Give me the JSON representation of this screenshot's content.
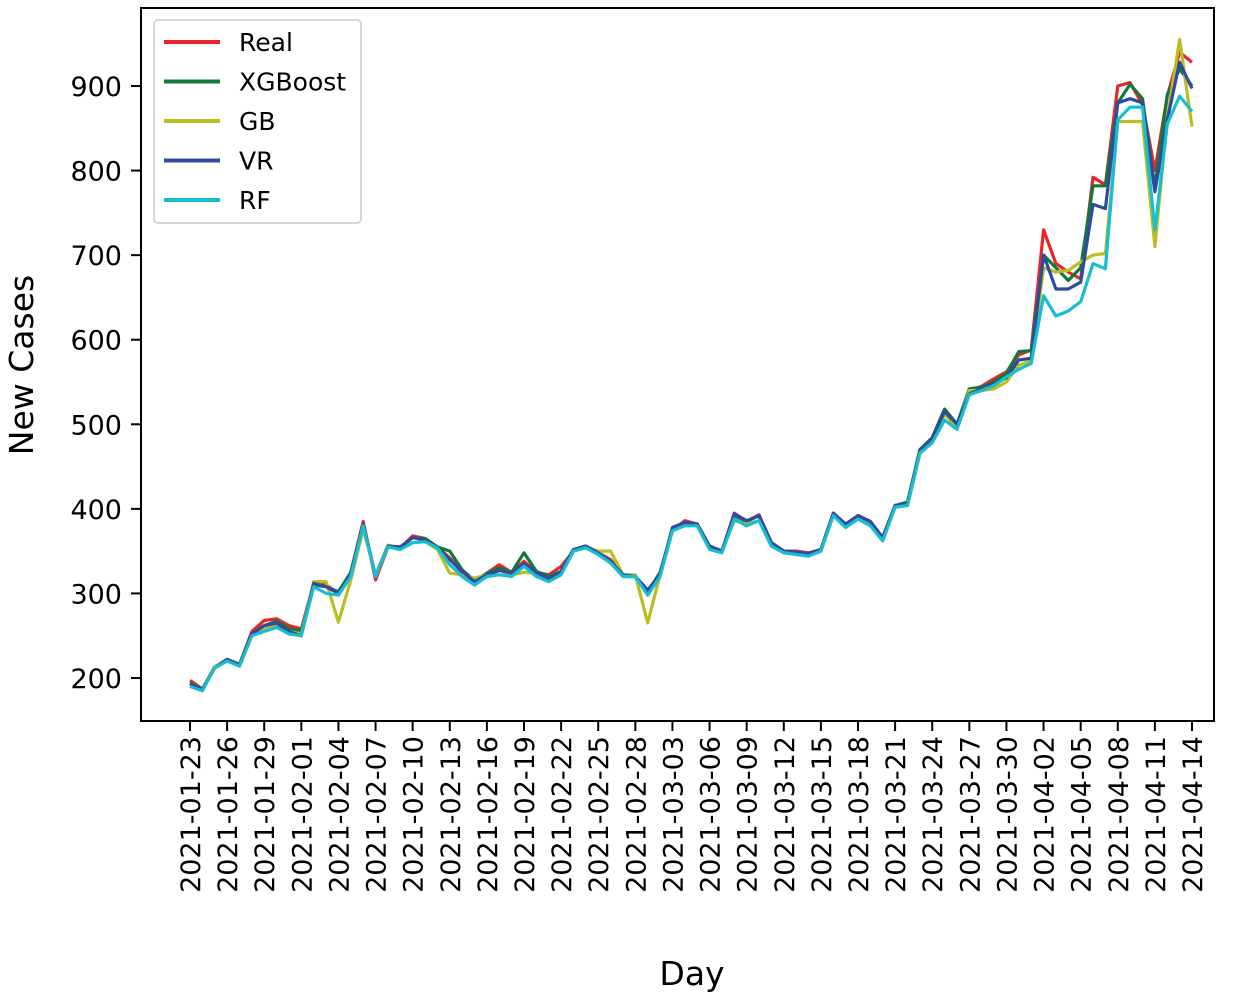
{
  "chart_data": {
    "type": "line",
    "title": "",
    "xlabel": "Day",
    "ylabel": "New Cases",
    "ylim": [
      170,
      960
    ],
    "yticks": [
      200,
      300,
      400,
      500,
      600,
      700,
      800,
      900
    ],
    "grid": false,
    "legend_position": "top-left",
    "x": [
      "2021-01-23",
      "2021-01-24",
      "2021-01-25",
      "2021-01-26",
      "2021-01-27",
      "2021-01-28",
      "2021-01-29",
      "2021-01-30",
      "2021-01-31",
      "2021-02-01",
      "2021-02-02",
      "2021-02-03",
      "2021-02-04",
      "2021-02-05",
      "2021-02-06",
      "2021-02-07",
      "2021-02-08",
      "2021-02-09",
      "2021-02-10",
      "2021-02-11",
      "2021-02-12",
      "2021-02-13",
      "2021-02-14",
      "2021-02-15",
      "2021-02-16",
      "2021-02-17",
      "2021-02-18",
      "2021-02-19",
      "2021-02-20",
      "2021-02-21",
      "2021-02-22",
      "2021-02-23",
      "2021-02-24",
      "2021-02-25",
      "2021-02-26",
      "2021-02-27",
      "2021-02-28",
      "2021-03-01",
      "2021-03-02",
      "2021-03-03",
      "2021-03-04",
      "2021-03-05",
      "2021-03-06",
      "2021-03-07",
      "2021-03-08",
      "2021-03-09",
      "2021-03-10",
      "2021-03-11",
      "2021-03-12",
      "2021-03-13",
      "2021-03-14",
      "2021-03-15",
      "2021-03-16",
      "2021-03-17",
      "2021-03-18",
      "2021-03-19",
      "2021-03-20",
      "2021-03-21",
      "2021-03-22",
      "2021-03-23",
      "2021-03-24",
      "2021-03-25",
      "2021-03-26",
      "2021-03-27",
      "2021-03-28",
      "2021-03-29",
      "2021-03-30",
      "2021-03-31",
      "2021-04-01",
      "2021-04-02",
      "2021-04-03",
      "2021-04-04",
      "2021-04-05",
      "2021-04-06",
      "2021-04-07",
      "2021-04-08",
      "2021-04-09",
      "2021-04-10",
      "2021-04-11",
      "2021-04-12",
      "2021-04-13",
      "2021-04-14"
    ],
    "xtick_labels": [
      "2021-01-23",
      "2021-01-26",
      "2021-01-29",
      "2021-02-01",
      "2021-02-04",
      "2021-02-07",
      "2021-02-10",
      "2021-02-13",
      "2021-02-16",
      "2021-02-19",
      "2021-02-22",
      "2021-02-25",
      "2021-02-28",
      "2021-03-03",
      "2021-03-06",
      "2021-03-09",
      "2021-03-12",
      "2021-03-15",
      "2021-03-18",
      "2021-03-21",
      "2021-03-24",
      "2021-03-27",
      "2021-03-30",
      "2021-04-02",
      "2021-04-05",
      "2021-04-08",
      "2021-04-11",
      "2021-04-14"
    ],
    "series": [
      {
        "name": "Real",
        "color": "#e8262a",
        "values": [
          197,
          187,
          213,
          222,
          216,
          255,
          268,
          270,
          262,
          258,
          312,
          310,
          300,
          325,
          385,
          316,
          355,
          354,
          368,
          365,
          355,
          342,
          324,
          312,
          324,
          334,
          325,
          338,
          325,
          322,
          332,
          350,
          356,
          348,
          340,
          322,
          320,
          302,
          325,
          374,
          386,
          382,
          356,
          350,
          395,
          385,
          393,
          360,
          350,
          350,
          348,
          352,
          395,
          380,
          392,
          385,
          366,
          404,
          406,
          470,
          484,
          518,
          500,
          540,
          545,
          554,
          562,
          582,
          588,
          730,
          690,
          680,
          672,
          792,
          783,
          900,
          904,
          878,
          800,
          888,
          940,
          928
        ]
      },
      {
        "name": "XGBoost",
        "color": "#117a3a",
        "values": [
          194,
          187,
          213,
          222,
          216,
          252,
          262,
          267,
          258,
          256,
          310,
          308,
          302,
          325,
          382,
          320,
          356,
          354,
          366,
          365,
          355,
          350,
          328,
          315,
          324,
          330,
          325,
          348,
          326,
          320,
          326,
          352,
          356,
          348,
          338,
          320,
          320,
          300,
          325,
          376,
          384,
          382,
          356,
          350,
          392,
          385,
          392,
          358,
          350,
          349,
          346,
          350,
          394,
          382,
          390,
          384,
          366,
          404,
          408,
          470,
          484,
          518,
          500,
          542,
          544,
          550,
          560,
          586,
          587,
          700,
          685,
          670,
          685,
          782,
          782,
          880,
          902,
          885,
          780,
          890,
          920,
          900
        ]
      },
      {
        "name": "GB",
        "color": "#bcbd22",
        "values": [
          190,
          186,
          213,
          222,
          214,
          250,
          258,
          262,
          255,
          252,
          314,
          314,
          266,
          316,
          376,
          322,
          357,
          354,
          360,
          362,
          352,
          324,
          322,
          318,
          322,
          322,
          322,
          325,
          324,
          316,
          324,
          352,
          355,
          350,
          350,
          322,
          322,
          265,
          322,
          375,
          382,
          380,
          356,
          350,
          386,
          382,
          386,
          356,
          350,
          348,
          346,
          352,
          392,
          382,
          388,
          384,
          364,
          402,
          404,
          465,
          480,
          512,
          496,
          540,
          540,
          542,
          550,
          570,
          575,
          685,
          680,
          682,
          692,
          700,
          702,
          858,
          858,
          858,
          710,
          862,
          955,
          852
        ]
      },
      {
        "name": "VR",
        "color": "#2f4ba1",
        "values": [
          193,
          186,
          212,
          222,
          215,
          252,
          262,
          265,
          255,
          250,
          312,
          308,
          300,
          323,
          382,
          320,
          356,
          355,
          366,
          363,
          354,
          340,
          326,
          314,
          322,
          327,
          324,
          335,
          325,
          317,
          326,
          352,
          356,
          348,
          338,
          322,
          320,
          304,
          322,
          378,
          384,
          382,
          356,
          350,
          394,
          386,
          392,
          360,
          350,
          349,
          347,
          352,
          395,
          382,
          392,
          385,
          366,
          404,
          406,
          468,
          484,
          515,
          500,
          536,
          542,
          548,
          555,
          576,
          578,
          700,
          660,
          660,
          668,
          760,
          755,
          880,
          885,
          880,
          775,
          860,
          928,
          897
        ]
      },
      {
        "name": "RF",
        "color": "#17becf",
        "values": [
          190,
          185,
          212,
          220,
          214,
          250,
          255,
          260,
          252,
          250,
          308,
          300,
          298,
          320,
          380,
          320,
          355,
          352,
          360,
          361,
          354,
          334,
          320,
          310,
          320,
          322,
          320,
          332,
          320,
          314,
          322,
          350,
          354,
          346,
          336,
          320,
          320,
          298,
          320,
          374,
          380,
          380,
          352,
          348,
          388,
          380,
          386,
          356,
          348,
          346,
          344,
          350,
          392,
          378,
          388,
          380,
          362,
          402,
          404,
          466,
          478,
          505,
          494,
          535,
          540,
          546,
          556,
          565,
          572,
          652,
          628,
          634,
          645,
          690,
          684,
          860,
          875,
          875,
          730,
          855,
          888,
          870
        ]
      }
    ]
  }
}
